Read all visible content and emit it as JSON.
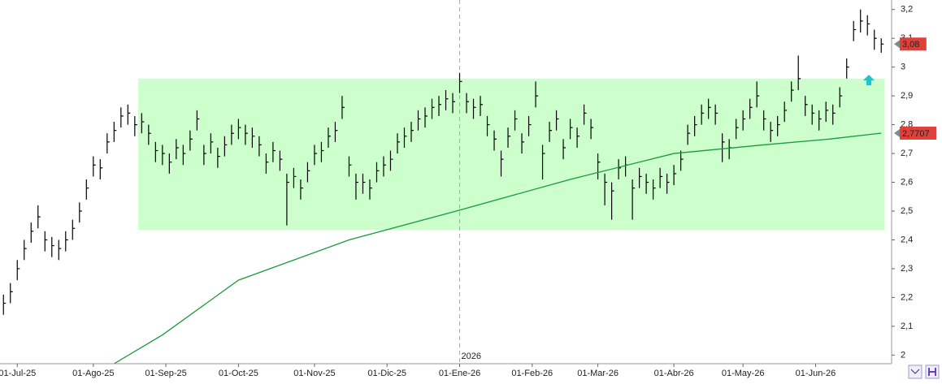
{
  "chart_data": {
    "type": "ohlc",
    "year_label": "2026",
    "year_label_at": 66,
    "xlim": [
      -0.5,
      128.5
    ],
    "xticks": [
      {
        "value": 2,
        "label": "01-Jul-25"
      },
      {
        "value": 13,
        "label": "01-Ago-25"
      },
      {
        "value": 23.5,
        "label": "01-Sep-25"
      },
      {
        "value": 34,
        "label": "01-Oct-25"
      },
      {
        "value": 45,
        "label": "01-Nov-25"
      },
      {
        "value": 55.5,
        "label": "01-Dic-25"
      },
      {
        "value": 66,
        "label": "01-Ene-26"
      },
      {
        "value": 76.5,
        "label": "01-Feb-26"
      },
      {
        "value": 86,
        "label": "01-Mar-26"
      },
      {
        "value": 97,
        "label": "01-Abr-26"
      },
      {
        "value": 107,
        "label": "01-May-26"
      },
      {
        "value": 117.5,
        "label": "01-Jun-26"
      }
    ],
    "ylim": [
      1.97,
      3.233
    ],
    "yticks": [
      {
        "value": 3.2,
        "label": "3,2"
      },
      {
        "value": 3.1,
        "label": "3,1"
      },
      3,
      {
        "value": 2.9,
        "label": "2,9"
      },
      {
        "value": 2.8,
        "label": "2,8"
      },
      {
        "value": 2.7,
        "label": "2,7"
      },
      {
        "value": 2.6,
        "label": "2,6"
      },
      {
        "value": 2.5,
        "label": "2,5"
      },
      {
        "value": 2.4,
        "label": "2,4"
      },
      {
        "value": 2.3,
        "label": "2,3"
      },
      {
        "value": 2.2,
        "label": "2,2"
      },
      {
        "value": 2.1,
        "label": "2,1"
      },
      2
    ],
    "zone": {
      "color": "#ccffcc",
      "x_start": 19.5,
      "ymin": 2.435,
      "ymax": 2.96
    },
    "bar_color": "#000000",
    "high": [
      2.21,
      2.25,
      2.33,
      2.4,
      2.46,
      2.52,
      2.43,
      2.41,
      2.4,
      2.43,
      2.47,
      2.53,
      2.61,
      2.69,
      2.68,
      2.77,
      2.81,
      2.86,
      2.87,
      2.83,
      2.84,
      2.8,
      2.74,
      2.73,
      2.7,
      2.75,
      2.73,
      2.78,
      2.85,
      2.73,
      2.77,
      2.72,
      2.76,
      2.8,
      2.82,
      2.8,
      2.79,
      2.76,
      2.7,
      2.74,
      2.71,
      2.63,
      2.65,
      2.61,
      2.67,
      2.73,
      2.74,
      2.79,
      2.81,
      2.9,
      2.69,
      2.63,
      2.63,
      2.61,
      2.67,
      2.69,
      2.71,
      2.77,
      2.79,
      2.81,
      2.85,
      2.86,
      2.89,
      2.9,
      2.92,
      2.91,
      2.98,
      2.91,
      2.89,
      2.9,
      2.83,
      2.78,
      2.71,
      2.79,
      2.85,
      2.77,
      2.83,
      2.95,
      2.73,
      2.81,
      2.85,
      2.75,
      2.82,
      2.79,
      2.87,
      2.82,
      2.7,
      2.63,
      2.6,
      2.68,
      2.69,
      2.61,
      2.65,
      2.63,
      2.61,
      2.65,
      2.63,
      2.66,
      2.71,
      2.8,
      2.83,
      2.87,
      2.89,
      2.87,
      2.77,
      2.75,
      2.82,
      2.85,
      2.89,
      2.95,
      2.85,
      2.81,
      2.83,
      2.88,
      2.95,
      3.04,
      2.9,
      2.87,
      2.85,
      2.88,
      2.87,
      2.93,
      3.03,
      3.16,
      3.2,
      3.18,
      3.13,
      3.1
    ],
    "low": [
      2.14,
      2.18,
      2.26,
      2.33,
      2.39,
      2.44,
      2.36,
      2.34,
      2.33,
      2.36,
      2.4,
      2.46,
      2.54,
      2.62,
      2.61,
      2.7,
      2.74,
      2.79,
      2.8,
      2.76,
      2.77,
      2.73,
      2.67,
      2.66,
      2.63,
      2.68,
      2.66,
      2.71,
      2.78,
      2.66,
      2.7,
      2.65,
      2.69,
      2.73,
      2.75,
      2.73,
      2.72,
      2.69,
      2.63,
      2.67,
      2.64,
      2.45,
      2.58,
      2.54,
      2.6,
      2.66,
      2.67,
      2.72,
      2.74,
      2.82,
      2.62,
      2.54,
      2.56,
      2.54,
      2.6,
      2.62,
      2.64,
      2.7,
      2.72,
      2.74,
      2.78,
      2.79,
      2.82,
      2.83,
      2.85,
      2.84,
      2.91,
      2.84,
      2.82,
      2.83,
      2.76,
      2.71,
      2.62,
      2.72,
      2.78,
      2.7,
      2.76,
      2.86,
      2.61,
      2.74,
      2.78,
      2.68,
      2.75,
      2.72,
      2.8,
      2.75,
      2.61,
      2.52,
      2.47,
      2.61,
      2.62,
      2.47,
      2.58,
      2.56,
      2.54,
      2.58,
      2.56,
      2.59,
      2.64,
      2.73,
      2.76,
      2.8,
      2.82,
      2.8,
      2.67,
      2.68,
      2.75,
      2.78,
      2.82,
      2.86,
      2.78,
      2.74,
      2.76,
      2.81,
      2.88,
      2.92,
      2.83,
      2.8,
      2.78,
      2.81,
      2.8,
      2.86,
      2.96,
      3.09,
      3.12,
      3.11,
      3.06,
      3.05
    ],
    "close": [
      2.18,
      2.22,
      2.3,
      2.37,
      2.43,
      2.48,
      2.4,
      2.38,
      2.37,
      2.4,
      2.44,
      2.5,
      2.58,
      2.66,
      2.65,
      2.74,
      2.78,
      2.83,
      2.84,
      2.8,
      2.81,
      2.77,
      2.71,
      2.7,
      2.67,
      2.72,
      2.7,
      2.75,
      2.82,
      2.7,
      2.74,
      2.69,
      2.73,
      2.77,
      2.79,
      2.77,
      2.76,
      2.73,
      2.67,
      2.71,
      2.68,
      2.6,
      2.62,
      2.58,
      2.64,
      2.7,
      2.71,
      2.76,
      2.78,
      2.86,
      2.66,
      2.6,
      2.6,
      2.58,
      2.64,
      2.66,
      2.68,
      2.74,
      2.76,
      2.78,
      2.82,
      2.83,
      2.86,
      2.87,
      2.89,
      2.88,
      2.95,
      2.88,
      2.86,
      2.87,
      2.8,
      2.75,
      2.68,
      2.76,
      2.82,
      2.74,
      2.8,
      2.9,
      2.7,
      2.78,
      2.82,
      2.72,
      2.79,
      2.76,
      2.84,
      2.79,
      2.67,
      2.6,
      2.57,
      2.65,
      2.66,
      2.58,
      2.62,
      2.6,
      2.58,
      2.62,
      2.6,
      2.63,
      2.68,
      2.77,
      2.8,
      2.84,
      2.86,
      2.84,
      2.74,
      2.72,
      2.79,
      2.82,
      2.86,
      2.9,
      2.82,
      2.78,
      2.8,
      2.85,
      2.92,
      2.96,
      2.87,
      2.84,
      2.82,
      2.85,
      2.84,
      2.9,
      3.0,
      3.13,
      3.16,
      3.15,
      3.1,
      3.08
    ],
    "ma": {
      "color": "#1a9a3a",
      "x": [
        16,
        23,
        34,
        50,
        65.5,
        82,
        97,
        110,
        119.5,
        127
      ],
      "values": [
        1.97,
        2.07,
        2.26,
        2.4,
        2.5,
        2.61,
        2.7,
        2.73,
        2.75,
        2.7707
      ]
    },
    "last_price_label": {
      "value": 3.08,
      "label": "3,08",
      "color": "#e0403a"
    },
    "ma_label": {
      "value": 2.7707,
      "label": "2,7707",
      "color": "#e0403a"
    }
  }
}
